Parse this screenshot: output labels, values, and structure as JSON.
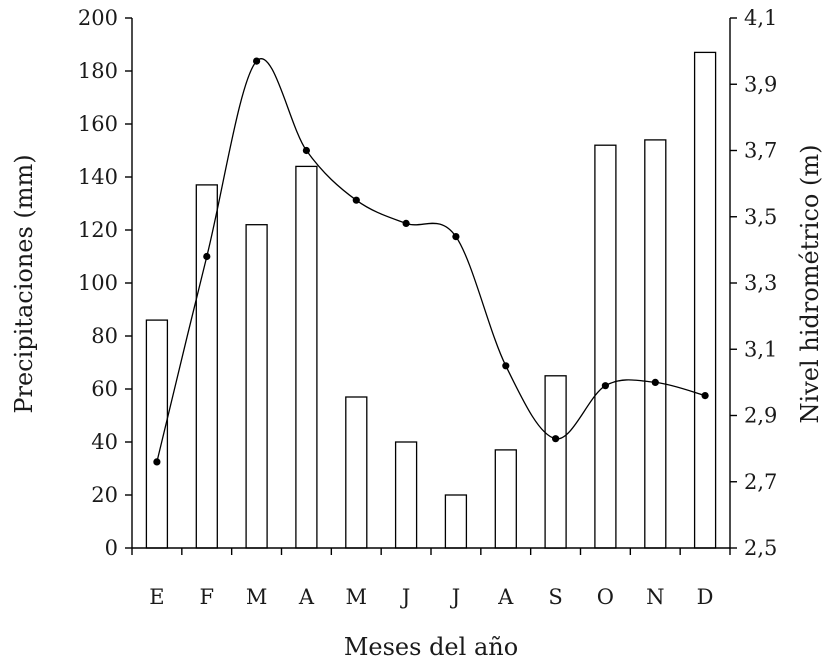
{
  "chart_data": {
    "type": "bar",
    "title": "",
    "xlabel": "Meses del año",
    "ylabel": "Precipitaciones (mm)",
    "y2label": "Nivel hidrométrico (m)",
    "categories": [
      "E",
      "F",
      "M",
      "A",
      "M",
      "J",
      "J",
      "A",
      "S",
      "O",
      "N",
      "D"
    ],
    "ylim": [
      0,
      200
    ],
    "yticks": [
      "0",
      "20",
      "40",
      "60",
      "80",
      "100",
      "120",
      "140",
      "160",
      "180",
      "200"
    ],
    "y2lim": [
      2.5,
      4.1
    ],
    "y2ticks": [
      "2,5",
      "2,7",
      "2,9",
      "3,1",
      "3,3",
      "3,5",
      "3,7",
      "3,9",
      "4,1"
    ],
    "grid": false,
    "series": [
      {
        "type": "bar",
        "axis": "left",
        "values": [
          86,
          137,
          122,
          144,
          57,
          40,
          20,
          37,
          65,
          152,
          154,
          187
        ]
      },
      {
        "type": "line",
        "axis": "right",
        "marker": "circle",
        "values": [
          2.76,
          3.38,
          3.97,
          3.7,
          3.55,
          3.48,
          3.44,
          3.05,
          2.83,
          2.99,
          3.0,
          2.96
        ]
      }
    ]
  }
}
